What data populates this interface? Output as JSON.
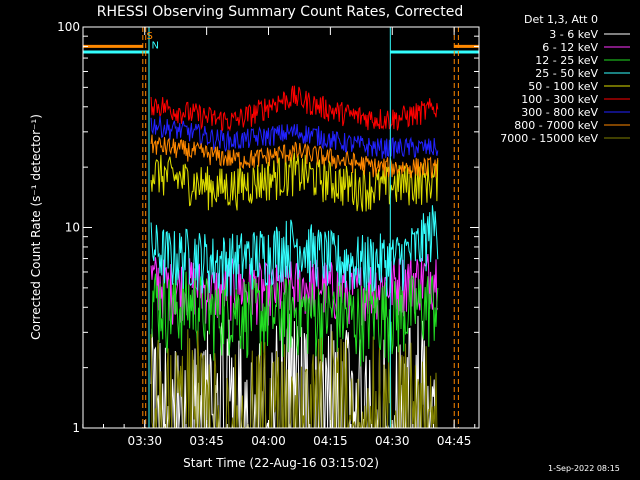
{
  "chart_data": {
    "type": "line",
    "title": "RHESSI Observing Summary Count Rates, Corrected",
    "ylabel": "Corrected Count Rate (s⁻¹ detector⁻¹)",
    "xlabel": "Start Time (22-Aug-16 03:15:02)",
    "y_scale": "log",
    "ylim": [
      1,
      100
    ],
    "xlim_minutes": [
      0,
      96
    ],
    "x_ticks": [
      {
        "label": "03:30",
        "min": 14.97
      },
      {
        "label": "03:45",
        "min": 29.97
      },
      {
        "label": "04:00",
        "min": 44.97
      },
      {
        "label": "04:15",
        "min": 59.97
      },
      {
        "label": "04:30",
        "min": 74.97
      },
      {
        "label": "04:45",
        "min": 89.97
      }
    ],
    "y_ticks": [
      {
        "label": "1",
        "v": 1
      },
      {
        "label": "10",
        "v": 10
      },
      {
        "label": "100",
        "v": 100
      }
    ],
    "legend_title": "Det 1,3, Att 0",
    "legend_position": "top-right, outside",
    "series": [
      {
        "name": "3 - 6 keV",
        "color": "#ffffff",
        "values": [
          1.8,
          1.3,
          2.1,
          1.6,
          2.4,
          1.2,
          1.9,
          2.7,
          1.5,
          2.2,
          1.4,
          1.9,
          1.6,
          2.3,
          1.5
        ]
      },
      {
        "name": "6 - 12 keV",
        "color": "#ff33ff",
        "values": [
          5.6,
          5.0,
          5.3,
          4.8,
          5.2,
          5.0,
          4.9,
          5.1,
          5.3,
          5.0,
          4.9,
          5.2,
          5.4,
          5.6,
          6.0
        ]
      },
      {
        "name": "12 - 25 keV",
        "color": "#22dd22",
        "values": [
          4.6,
          4.0,
          4.3,
          3.8,
          4.1,
          3.9,
          3.7,
          4.0,
          3.8,
          3.9,
          3.6,
          3.9,
          3.8,
          4.1,
          4.4
        ]
      },
      {
        "name": "25 - 50 keV",
        "color": "#33ffff",
        "values": [
          8.0,
          7.2,
          7.5,
          6.8,
          7.0,
          7.3,
          7.8,
          8.5,
          7.6,
          7.0,
          6.8,
          6.9,
          7.0,
          8.0,
          10.5
        ]
      },
      {
        "name": "50 - 100 keV",
        "color": "#dddd00",
        "values": [
          19,
          18,
          17,
          16,
          16,
          17,
          18,
          19,
          18,
          17,
          16,
          16,
          16.5,
          17,
          17.5
        ]
      },
      {
        "name": "100 - 300 keV",
        "color": "#ff0000",
        "values": [
          42,
          39,
          37,
          35,
          34,
          37,
          42,
          45,
          41,
          38,
          36,
          35,
          35,
          37,
          40
        ]
      },
      {
        "name": "300 - 800 keV",
        "color": "#2222ff",
        "values": [
          33,
          31,
          30,
          28,
          27,
          28,
          29,
          30,
          29,
          27,
          26,
          25,
          25,
          25,
          25
        ]
      },
      {
        "name": "800 - 7000 keV",
        "color": "#ff8800",
        "values": [
          26,
          25,
          24,
          23,
          22,
          22,
          23,
          24,
          23,
          22,
          21,
          20,
          20,
          20,
          20
        ]
      },
      {
        "name": "7000 - 15000 keV",
        "color": "#808000",
        "values": [
          1.7,
          1.2,
          1.9,
          1.4,
          1.6,
          1.2,
          1.8,
          1.4,
          1.5,
          1.9,
          1.3,
          1.6,
          1.4,
          1.7,
          1.3
        ]
      }
    ],
    "series_x_range_minutes": [
      16.5,
      86.0
    ],
    "flag_lines": [
      {
        "label": "",
        "color": "#33ffff",
        "x": [
          0,
          16.0
        ],
        "y": 75,
        "vlines": [
          0,
          16.0
        ]
      },
      {
        "label": "",
        "color": "#33ffff",
        "x": [
          74.5,
          96
        ],
        "y": 75,
        "vlines": [
          74.5
        ]
      },
      {
        "label": "",
        "color": "#ff8800",
        "x": [
          0,
          14.5
        ],
        "y": 80,
        "vlines": [
          14.5,
          15.2
        ]
      },
      {
        "label": "",
        "color": "#ff8800",
        "x": [
          90.0,
          96
        ],
        "y": 80,
        "vlines": [
          90.0,
          91.0
        ]
      }
    ],
    "annotations": [
      {
        "text": "S",
        "color": "#ff8800",
        "x_min": 15.4,
        "v": 87
      },
      {
        "text": "N",
        "color": "#33ffff",
        "x_min": 16.6,
        "v": 78
      }
    ]
  },
  "footer": {
    "timestamp": "1-Sep-2022 08:15"
  }
}
